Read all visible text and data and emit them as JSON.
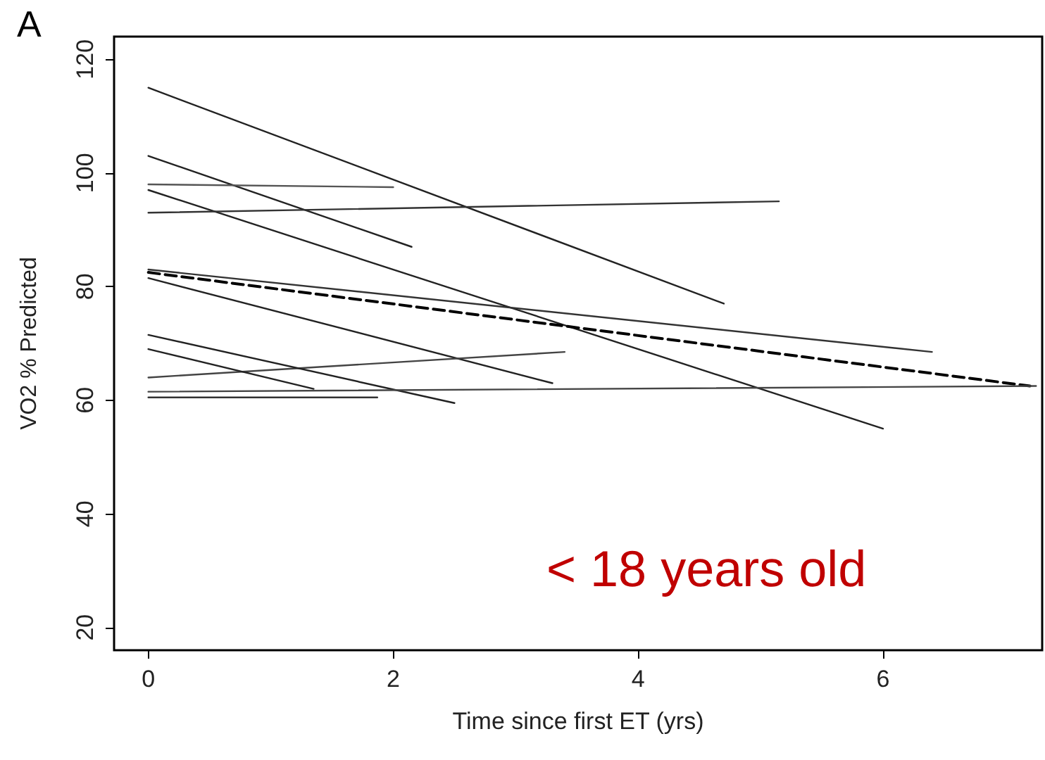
{
  "chart_data": {
    "type": "line",
    "xlabel": "Time since first ET (yrs)",
    "ylabel": "VO2 % Predicted",
    "annotations": [
      "A",
      "< 18 years old"
    ],
    "xlim": [
      -0.28,
      7.3
    ],
    "ylim": [
      16,
      124
    ],
    "xticks": [
      0,
      2,
      4,
      6
    ],
    "yticks": [
      20,
      40,
      60,
      80,
      100,
      120
    ],
    "grid": false,
    "marker": "none",
    "line_style": "solid",
    "series": [
      {
        "color": "#222222",
        "x": [
          0,
          4.7
        ],
        "values": [
          115,
          77
        ]
      },
      {
        "color": "#222222",
        "x": [
          0,
          2.15
        ],
        "values": [
          103,
          87
        ]
      },
      {
        "color": "#555555",
        "x": [
          0,
          2.0
        ],
        "values": [
          98,
          97.5
        ]
      },
      {
        "color": "#222222",
        "x": [
          0,
          6.0
        ],
        "values": [
          97,
          55
        ]
      },
      {
        "color": "#333333",
        "x": [
          0,
          5.15
        ],
        "values": [
          93,
          95
        ]
      },
      {
        "color": "#333333",
        "x": [
          0,
          6.4
        ],
        "values": [
          83,
          68.5
        ]
      },
      {
        "color": "#000000",
        "x": [
          0,
          7.2
        ],
        "values": [
          82.5,
          62.5
        ],
        "line_style": "dashed"
      },
      {
        "color": "#222222",
        "x": [
          0,
          3.3
        ],
        "values": [
          81.5,
          63
        ]
      },
      {
        "color": "#444444",
        "x": [
          0,
          3.4
        ],
        "values": [
          64,
          68.5
        ]
      },
      {
        "color": "#222222",
        "x": [
          0,
          2.5
        ],
        "values": [
          71.5,
          59.5
        ]
      },
      {
        "color": "#222222",
        "x": [
          0,
          1.35
        ],
        "values": [
          69,
          62
        ]
      },
      {
        "color": "#444444",
        "x": [
          0,
          7.25
        ],
        "values": [
          61.5,
          62.5
        ]
      },
      {
        "color": "#333333",
        "x": [
          0,
          1.87
        ],
        "values": [
          60.5,
          60.5
        ]
      }
    ]
  }
}
